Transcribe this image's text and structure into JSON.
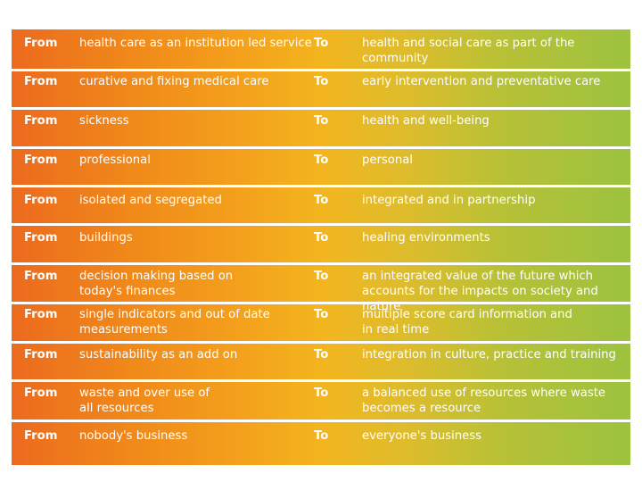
{
  "rows": [
    {
      "from": "From",
      "left": "health care as an institution led service",
      "to": "To",
      "right": "health and social care as part of the\ncommunity"
    },
    {
      "from": "From",
      "left": "curative and fixing medical care",
      "to": "To",
      "right": "early intervention and preventative care"
    },
    {
      "from": "From",
      "left": "sickness",
      "to": "To",
      "right": "health and well-being"
    },
    {
      "from": "From",
      "left": "professional",
      "to": "To",
      "right": "personal"
    },
    {
      "from": "From",
      "left": "isolated and segregated",
      "to": "To",
      "right": "integrated and in partnership"
    },
    {
      "from": "From",
      "left": "buildings",
      "to": "To",
      "right": "healing environments"
    },
    {
      "from": "From",
      "left": "decision making based on\ntoday's finances",
      "to": "To",
      "right": "an integrated value of the future which\naccounts for the impacts on society and nature"
    },
    {
      "from": "From",
      "left": "single indicators and out of date\nmeasurements",
      "to": "To",
      "right": "multiple score card information and\nin real time"
    },
    {
      "from": "From",
      "left": "sustainability as an add on",
      "to": "To",
      "right": "integration in culture, practice and training"
    },
    {
      "from": "From",
      "left": "waste and over use of\nall resources",
      "to": "To",
      "right": "a balanced use of resources where waste\nbecomes a resource"
    },
    {
      "from": "From",
      "left": "nobody's business",
      "to": "To",
      "right": "everyone's business"
    }
  ]
}
